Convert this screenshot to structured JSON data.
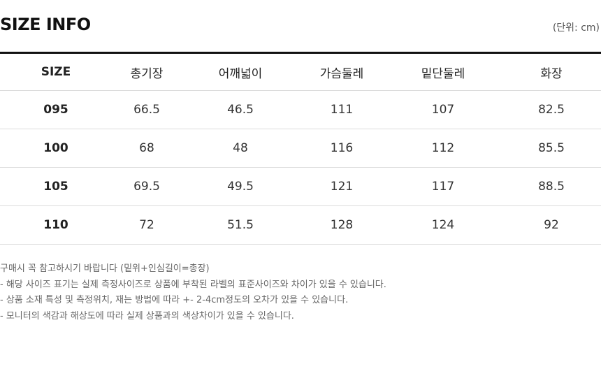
{
  "header": {
    "title": "SIZE INFO",
    "unit": "(단위: cm)"
  },
  "table": {
    "columns": [
      "SIZE",
      "총기장",
      "어깨넓이",
      "가슴둘레",
      "밑단둘레",
      "화장"
    ],
    "rows": [
      [
        "095",
        "66.5",
        "46.5",
        "111",
        "107",
        "82.5"
      ],
      [
        "100",
        "68",
        "48",
        "116",
        "112",
        "85.5"
      ],
      [
        "105",
        "69.5",
        "49.5",
        "121",
        "117",
        "88.5"
      ],
      [
        "110",
        "72",
        "51.5",
        "128",
        "124",
        "92"
      ]
    ]
  },
  "notes": [
    "구매시 꼭 참고하시기 바랍니다 (밑위+인심길이=총장)",
    "- 해당 사이즈 표기는 실제 측정사이즈로 상품에 부착된 라벨의 표준사이즈와 차이가 있을 수 있습니다.",
    "- 상품 소재 특성 및 측정위치, 재는 방법에 따라 +- 2-4cm정도의 오차가 있을 수 있습니다.",
    "- 모니터의 색감과 해상도에 따라 실제 상품과의 색상차이가 있을 수 있습니다."
  ]
}
